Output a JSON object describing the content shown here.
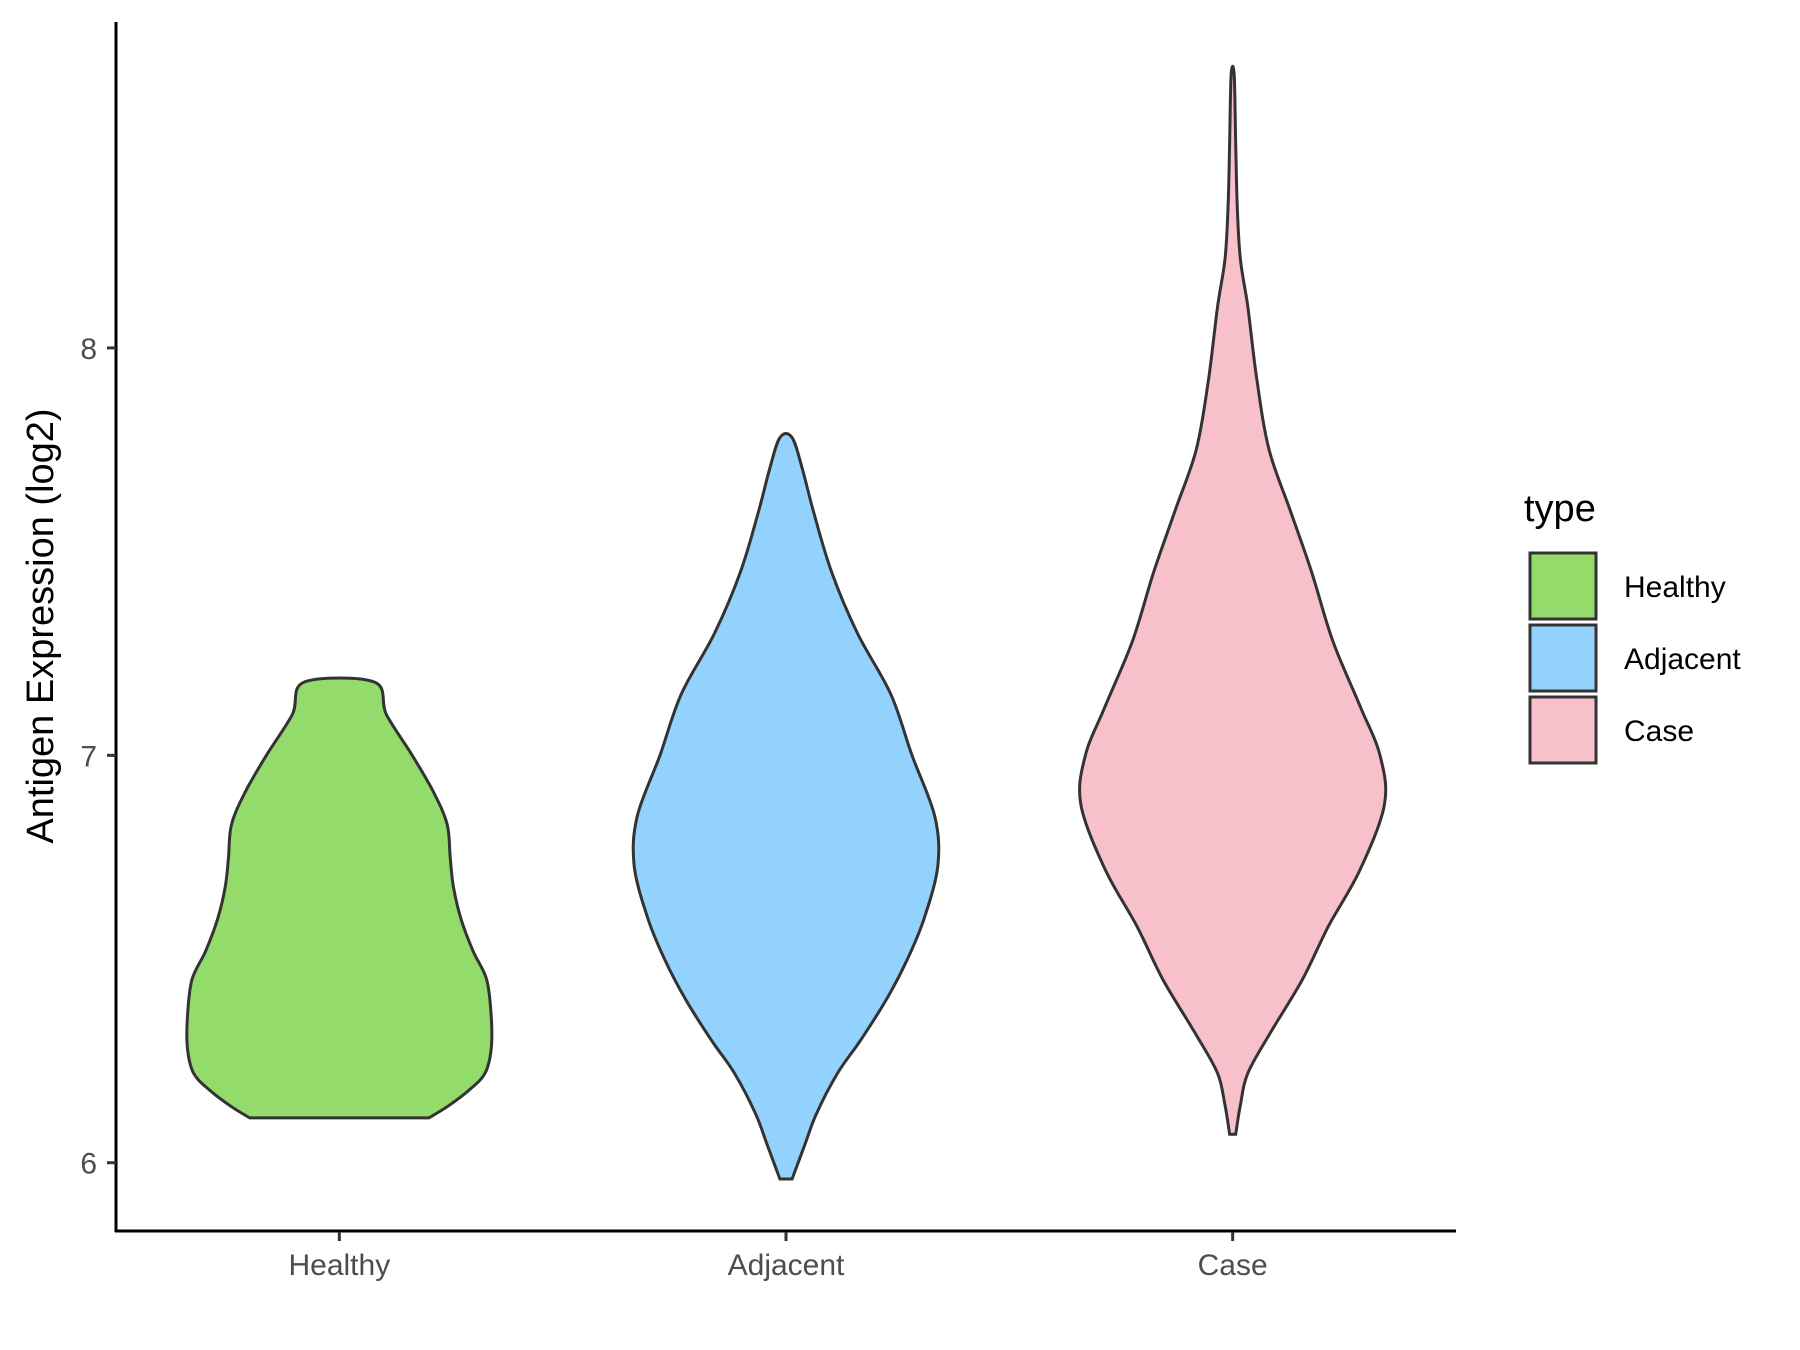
{
  "chart_data": {
    "type": "violin",
    "title": "",
    "xlabel": "",
    "ylabel": "Antigen Expression (log2)",
    "ylim": [
      5.83,
      8.8
    ],
    "yticks": [
      6,
      7,
      8
    ],
    "categories": [
      "Healthy",
      "Adjacent",
      "Case"
    ],
    "legend": {
      "title": "type",
      "placement": "right",
      "entries": [
        "Healthy",
        "Adjacent",
        "Case"
      ]
    },
    "colors": {
      "Healthy": "#93DB6A",
      "Adjacent": "#94D2FE",
      "Case": "#F7C0CB",
      "outline": "#333333"
    },
    "grid": false,
    "series": [
      {
        "category": "Healthy",
        "range": [
          6.11,
          7.18
        ],
        "density_profile": [
          [
            6.11,
            0.59
          ],
          [
            6.14,
            0.72
          ],
          [
            6.18,
            0.86
          ],
          [
            6.22,
            0.96
          ],
          [
            6.28,
            1.0
          ],
          [
            6.36,
            1.0
          ],
          [
            6.45,
            0.97
          ],
          [
            6.52,
            0.88
          ],
          [
            6.6,
            0.8
          ],
          [
            6.68,
            0.75
          ],
          [
            6.75,
            0.73
          ],
          [
            6.83,
            0.71
          ],
          [
            6.91,
            0.62
          ],
          [
            7.0,
            0.48
          ],
          [
            7.1,
            0.31
          ],
          [
            7.18,
            0.23
          ]
        ]
      },
      {
        "category": "Adjacent",
        "range": [
          5.96,
          7.78
        ],
        "density_profile": [
          [
            5.96,
            0.04
          ],
          [
            6.04,
            0.12
          ],
          [
            6.12,
            0.2
          ],
          [
            6.22,
            0.34
          ],
          [
            6.3,
            0.49
          ],
          [
            6.4,
            0.66
          ],
          [
            6.5,
            0.8
          ],
          [
            6.6,
            0.91
          ],
          [
            6.73,
            1.0
          ],
          [
            6.85,
            0.98
          ],
          [
            7.0,
            0.83
          ],
          [
            7.15,
            0.69
          ],
          [
            7.3,
            0.47
          ],
          [
            7.45,
            0.3
          ],
          [
            7.6,
            0.18
          ],
          [
            7.7,
            0.11
          ],
          [
            7.78,
            0.04
          ]
        ]
      },
      {
        "category": "Case",
        "range": [
          6.07,
          8.67
        ],
        "density_profile": [
          [
            6.07,
            0.02
          ],
          [
            6.14,
            0.05
          ],
          [
            6.22,
            0.1
          ],
          [
            6.32,
            0.25
          ],
          [
            6.45,
            0.46
          ],
          [
            6.58,
            0.63
          ],
          [
            6.72,
            0.84
          ],
          [
            6.88,
            1.0
          ],
          [
            7.0,
            0.97
          ],
          [
            7.12,
            0.84
          ],
          [
            7.28,
            0.66
          ],
          [
            7.45,
            0.52
          ],
          [
            7.6,
            0.38
          ],
          [
            7.75,
            0.24
          ],
          [
            7.92,
            0.16
          ],
          [
            8.1,
            0.1
          ],
          [
            8.22,
            0.05
          ],
          [
            8.35,
            0.03
          ],
          [
            8.5,
            0.02
          ],
          [
            8.67,
            0.01
          ]
        ]
      }
    ]
  }
}
